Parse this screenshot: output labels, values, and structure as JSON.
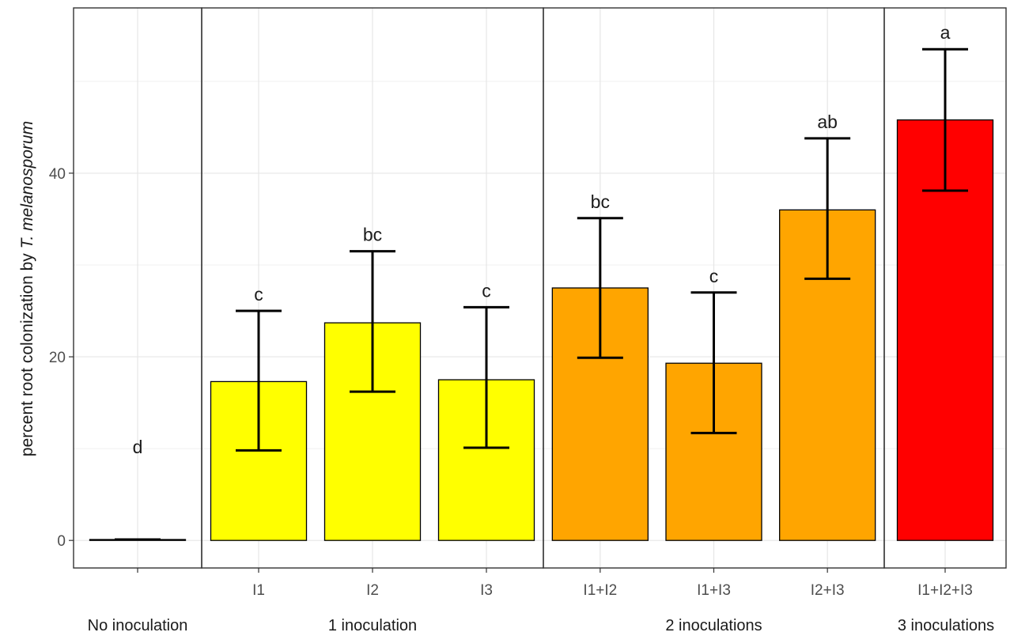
{
  "chart_data": {
    "type": "bar",
    "ylabel_prefix": "percent root colonization by ",
    "ylabel_species": "T. melanosporum",
    "ylim": [
      -3,
      58
    ],
    "yticks": [
      0,
      20,
      40
    ],
    "grid": true,
    "groups": [
      {
        "label": "No inoculation",
        "categories": [
          ""
        ]
      },
      {
        "label": "1 inoculation",
        "categories": [
          "I1",
          "I2",
          "I3"
        ]
      },
      {
        "label": "2 inoculations",
        "categories": [
          "I1+I2",
          "I1+I3",
          "I2+I3"
        ]
      },
      {
        "label": "3 inoculations",
        "categories": [
          "I1+I2+I3"
        ]
      }
    ],
    "bars": [
      {
        "group": 0,
        "category": "",
        "value": 0.1,
        "err_low": 0.1,
        "err_high": 0.1,
        "letter": "d",
        "color": "#FFFFFF"
      },
      {
        "group": 1,
        "category": "I1",
        "value": 17.3,
        "err_low": 9.8,
        "err_high": 25.0,
        "letter": "c",
        "color": "#FFFF00"
      },
      {
        "group": 1,
        "category": "I2",
        "value": 23.7,
        "err_low": 16.2,
        "err_high": 31.5,
        "letter": "bc",
        "color": "#FFFF00"
      },
      {
        "group": 1,
        "category": "I3",
        "value": 17.5,
        "err_low": 10.1,
        "err_high": 25.4,
        "letter": "c",
        "color": "#FFFF00"
      },
      {
        "group": 2,
        "category": "I1+I2",
        "value": 27.5,
        "err_low": 19.9,
        "err_high": 35.1,
        "letter": "bc",
        "color": "#FFA500"
      },
      {
        "group": 2,
        "category": "I1+I3",
        "value": 19.3,
        "err_low": 11.7,
        "err_high": 27.0,
        "letter": "c",
        "color": "#FFA500"
      },
      {
        "group": 2,
        "category": "I2+I3",
        "value": 36.0,
        "err_low": 28.5,
        "err_high": 43.8,
        "letter": "ab",
        "color": "#FFA500"
      },
      {
        "group": 3,
        "category": "I1+I2+I3",
        "value": 45.8,
        "err_low": 38.1,
        "err_high": 53.5,
        "letter": "a",
        "color": "#FF0000"
      }
    ]
  }
}
